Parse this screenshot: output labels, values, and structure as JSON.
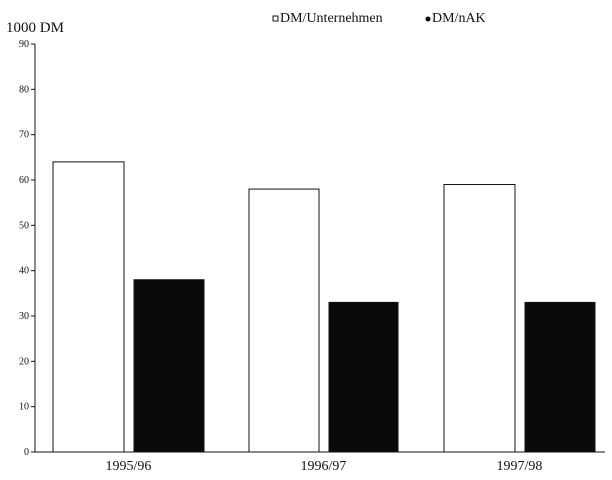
{
  "chart_data": {
    "type": "bar",
    "ylabel": "1000 DM",
    "ylim": [
      0,
      90
    ],
    "yticks": [
      0,
      10,
      20,
      30,
      40,
      50,
      60,
      70,
      80,
      90
    ],
    "grid": false,
    "legend_position": "top-right",
    "categories": [
      "1995/96",
      "1996/97",
      "1997/98"
    ],
    "series": [
      {
        "name": "DM/Unternehmen",
        "values": [
          64,
          58,
          59
        ],
        "color": "#ffffff"
      },
      {
        "name": "DM/nAK",
        "values": [
          38,
          33,
          33
        ],
        "color": "#0a0a0a"
      }
    ]
  }
}
